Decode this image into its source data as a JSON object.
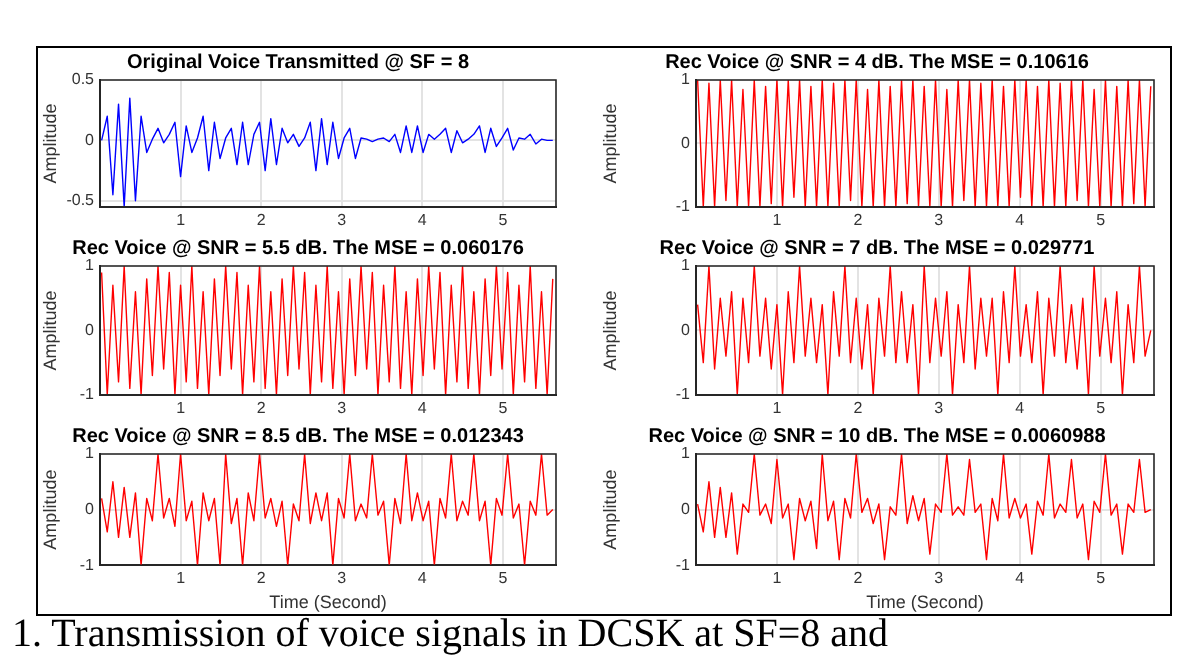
{
  "chart_data": [
    {
      "type": "line",
      "title": "Original Voice Transmitted @ SF = 8",
      "ylabel": "Amplitude",
      "color": "#0000ff",
      "grid": true,
      "xlim": [
        0,
        5.66
      ],
      "xticks": [
        1,
        2,
        3,
        4,
        5
      ],
      "ylim": [
        -0.55,
        0.5
      ],
      "yticks": [
        -0.5,
        0,
        0.5
      ],
      "x": [
        0.02,
        0.09,
        0.16,
        0.23,
        0.3,
        0.37,
        0.44,
        0.51,
        0.58,
        0.65,
        0.72,
        0.79,
        0.86,
        0.93,
        1.0,
        1.07,
        1.14,
        1.21,
        1.28,
        1.35,
        1.42,
        1.49,
        1.56,
        1.63,
        1.7,
        1.77,
        1.84,
        1.91,
        1.98,
        2.05,
        2.12,
        2.19,
        2.26,
        2.33,
        2.4,
        2.47,
        2.54,
        2.61,
        2.68,
        2.75,
        2.82,
        2.89,
        2.96,
        3.03,
        3.1,
        3.17,
        3.24,
        3.31,
        3.38,
        3.45,
        3.52,
        3.59,
        3.66,
        3.73,
        3.8,
        3.87,
        3.94,
        4.01,
        4.08,
        4.15,
        4.22,
        4.29,
        4.36,
        4.43,
        4.5,
        4.57,
        4.64,
        4.71,
        4.78,
        4.85,
        4.92,
        4.99,
        5.06,
        5.13,
        5.2,
        5.27,
        5.34,
        5.41,
        5.48,
        5.55,
        5.62
      ],
      "values": [
        0,
        0.2,
        -0.45,
        0.3,
        -0.55,
        0.35,
        -0.5,
        0.2,
        -0.1,
        0.01,
        0.1,
        -0.02,
        0.05,
        0.15,
        -0.3,
        0.12,
        -0.1,
        0.02,
        0.2,
        -0.25,
        0.15,
        -0.15,
        0.02,
        0.1,
        -0.2,
        0.15,
        -0.2,
        0.05,
        0.15,
        -0.25,
        0.18,
        -0.2,
        0.1,
        -0.02,
        0.05,
        -0.05,
        0.02,
        0.15,
        -0.25,
        0.18,
        -0.2,
        0.15,
        -0.15,
        0.02,
        0.1,
        -0.15,
        0.02,
        0.01,
        -0.01,
        0.01,
        0.02,
        -0.01,
        0.05,
        -0.1,
        0.12,
        -0.1,
        0.12,
        -0.1,
        0.05,
        0.01,
        0.05,
        0.1,
        -0.1,
        0.08,
        -0.02,
        0.01,
        0.05,
        0.12,
        -0.1,
        0.1,
        -0.05,
        0.02,
        0.1,
        -0.08,
        0.02,
        0.01,
        0.05,
        -0.03,
        0.01,
        0,
        0
      ]
    },
    {
      "type": "line",
      "title": "Rec Voice @ SNR = 4 dB. The MSE = 0.10616",
      "ylabel": "Amplitude",
      "color": "#ff0000",
      "grid": true,
      "xlim": [
        0,
        5.66
      ],
      "xticks": [
        1,
        2,
        3,
        4,
        5
      ],
      "ylim": [
        -1,
        1
      ],
      "yticks": [
        -1,
        0,
        1
      ],
      "x": [
        0.02,
        0.09,
        0.16,
        0.23,
        0.3,
        0.37,
        0.44,
        0.51,
        0.58,
        0.65,
        0.72,
        0.79,
        0.86,
        0.93,
        1.0,
        1.07,
        1.14,
        1.21,
        1.28,
        1.35,
        1.42,
        1.49,
        1.56,
        1.63,
        1.7,
        1.77,
        1.84,
        1.91,
        1.98,
        2.05,
        2.12,
        2.19,
        2.26,
        2.33,
        2.4,
        2.47,
        2.54,
        2.61,
        2.68,
        2.75,
        2.82,
        2.89,
        2.96,
        3.03,
        3.1,
        3.17,
        3.24,
        3.31,
        3.38,
        3.45,
        3.52,
        3.59,
        3.66,
        3.73,
        3.8,
        3.87,
        3.94,
        4.01,
        4.08,
        4.15,
        4.22,
        4.29,
        4.36,
        4.43,
        4.5,
        4.57,
        4.64,
        4.71,
        4.78,
        4.85,
        4.92,
        4.99,
        5.06,
        5.13,
        5.2,
        5.27,
        5.34,
        5.41,
        5.48,
        5.55,
        5.62
      ],
      "values": [
        1,
        -1,
        0.95,
        -1,
        1,
        -0.9,
        1,
        -1,
        0.85,
        -1,
        1,
        -1,
        0.9,
        -0.95,
        1,
        -1,
        1,
        -0.85,
        1,
        -1,
        0.9,
        -1,
        1,
        -1,
        0.95,
        -1,
        1,
        -0.9,
        1,
        -1,
        0.85,
        -1,
        1,
        -1,
        0.9,
        -1,
        1,
        -0.95,
        1,
        -1,
        0.9,
        -1,
        1,
        -1,
        0.85,
        -1,
        1,
        -0.9,
        1,
        -1,
        0.95,
        -1,
        1,
        -1,
        0.9,
        -1,
        1,
        -0.85,
        1,
        -1,
        0.9,
        -1,
        1,
        -1,
        0.95,
        -1,
        1,
        -0.9,
        1,
        -1,
        0.85,
        -1,
        1,
        -1,
        0.9,
        -1,
        1,
        -0.95,
        1,
        -1,
        0.9
      ]
    },
    {
      "type": "line",
      "title": "Rec Voice @ SNR = 5.5 dB. The MSE = 0.060176",
      "ylabel": "Amplitude",
      "color": "#ff0000",
      "grid": true,
      "xlim": [
        0,
        5.66
      ],
      "xticks": [
        1,
        2,
        3,
        4,
        5
      ],
      "ylim": [
        -1,
        1
      ],
      "yticks": [
        -1,
        0,
        1
      ],
      "x": [
        0.02,
        0.09,
        0.16,
        0.23,
        0.3,
        0.37,
        0.44,
        0.51,
        0.58,
        0.65,
        0.72,
        0.79,
        0.86,
        0.93,
        1.0,
        1.07,
        1.14,
        1.21,
        1.28,
        1.35,
        1.42,
        1.49,
        1.56,
        1.63,
        1.7,
        1.77,
        1.84,
        1.91,
        1.98,
        2.05,
        2.12,
        2.19,
        2.26,
        2.33,
        2.4,
        2.47,
        2.54,
        2.61,
        2.68,
        2.75,
        2.82,
        2.89,
        2.96,
        3.03,
        3.1,
        3.17,
        3.24,
        3.31,
        3.38,
        3.45,
        3.52,
        3.59,
        3.66,
        3.73,
        3.8,
        3.87,
        3.94,
        4.01,
        4.08,
        4.15,
        4.22,
        4.29,
        4.36,
        4.43,
        4.5,
        4.57,
        4.64,
        4.71,
        4.78,
        4.85,
        4.92,
        4.99,
        5.06,
        5.13,
        5.2,
        5.27,
        5.34,
        5.41,
        5.48,
        5.55,
        5.62
      ],
      "values": [
        0.9,
        -1,
        0.7,
        -0.8,
        1,
        -0.9,
        0.6,
        -1,
        0.8,
        -0.7,
        1,
        -0.6,
        0.9,
        -1,
        0.7,
        -0.8,
        1,
        -0.9,
        0.6,
        -1,
        0.8,
        -0.7,
        1,
        -0.6,
        0.9,
        -1,
        0.7,
        -0.8,
        1,
        -0.9,
        0.6,
        -1,
        0.8,
        -0.7,
        1,
        -0.6,
        0.9,
        -1,
        0.7,
        -0.8,
        1,
        -0.9,
        0.6,
        -1,
        0.8,
        -0.7,
        1,
        -0.6,
        0.9,
        -1,
        0.7,
        -0.8,
        1,
        -0.9,
        0.6,
        -1,
        0.8,
        -0.7,
        1,
        -0.6,
        0.9,
        -1,
        0.7,
        -0.8,
        1,
        -0.9,
        0.6,
        -1,
        0.8,
        -0.7,
        1,
        -0.6,
        0.9,
        -1,
        0.7,
        -0.8,
        1,
        -0.9,
        0.6,
        -1,
        0.8
      ]
    },
    {
      "type": "line",
      "title": "Rec Voice @ SNR = 7 dB. The MSE = 0.029771",
      "ylabel": "Amplitude",
      "color": "#ff0000",
      "grid": true,
      "xlim": [
        0,
        5.66
      ],
      "xticks": [
        1,
        2,
        3,
        4,
        5
      ],
      "ylim": [
        -1,
        1
      ],
      "yticks": [
        -1,
        0,
        1
      ],
      "x": [
        0.02,
        0.09,
        0.16,
        0.23,
        0.3,
        0.37,
        0.44,
        0.51,
        0.58,
        0.65,
        0.72,
        0.79,
        0.86,
        0.93,
        1.0,
        1.07,
        1.14,
        1.21,
        1.28,
        1.35,
        1.42,
        1.49,
        1.56,
        1.63,
        1.7,
        1.77,
        1.84,
        1.91,
        1.98,
        2.05,
        2.12,
        2.19,
        2.26,
        2.33,
        2.4,
        2.47,
        2.54,
        2.61,
        2.68,
        2.75,
        2.82,
        2.89,
        2.96,
        3.03,
        3.1,
        3.17,
        3.24,
        3.31,
        3.38,
        3.45,
        3.52,
        3.59,
        3.66,
        3.73,
        3.8,
        3.87,
        3.94,
        4.01,
        4.08,
        4.15,
        4.22,
        4.29,
        4.36,
        4.43,
        4.5,
        4.57,
        4.64,
        4.71,
        4.78,
        4.85,
        4.92,
        4.99,
        5.06,
        5.13,
        5.2,
        5.27,
        5.34,
        5.41,
        5.48,
        5.55,
        5.62
      ],
      "values": [
        0.4,
        -0.5,
        1,
        -0.6,
        0.5,
        -0.4,
        0.6,
        -1,
        0.5,
        -0.5,
        1,
        -0.4,
        0.5,
        -0.6,
        0.4,
        -1,
        0.6,
        -0.5,
        1,
        -0.4,
        0.5,
        -0.5,
        0.4,
        -1,
        0.6,
        -0.4,
        1,
        -0.5,
        0.5,
        -0.6,
        0.4,
        -1,
        0.5,
        -0.4,
        1,
        -0.5,
        0.6,
        -0.5,
        0.4,
        -1,
        1,
        -0.5,
        0.5,
        -0.4,
        0.6,
        -1,
        0.4,
        -0.5,
        1,
        -0.6,
        0.5,
        -0.4,
        0.5,
        -1,
        0.6,
        -0.5,
        1,
        -0.4,
        0.4,
        -0.5,
        0.6,
        -1,
        0.5,
        -0.4,
        1,
        -0.5,
        0.4,
        -0.6,
        0.5,
        -1,
        1,
        -0.4,
        0.5,
        -0.5,
        0.6,
        -1,
        0.4,
        -0.5,
        1,
        -0.4,
        0
      ]
    },
    {
      "type": "line",
      "title": "Rec Voice @ SNR = 8.5 dB. The MSE = 0.012343",
      "xlabel": "Time (Second)",
      "ylabel": "Amplitude",
      "color": "#ff0000",
      "grid": true,
      "xlim": [
        0,
        5.66
      ],
      "xticks": [
        1,
        2,
        3,
        4,
        5
      ],
      "ylim": [
        -1,
        1
      ],
      "yticks": [
        -1,
        0,
        1
      ],
      "x": [
        0.02,
        0.09,
        0.16,
        0.23,
        0.3,
        0.37,
        0.44,
        0.51,
        0.58,
        0.65,
        0.72,
        0.79,
        0.86,
        0.93,
        1.0,
        1.07,
        1.14,
        1.21,
        1.28,
        1.35,
        1.42,
        1.49,
        1.56,
        1.63,
        1.7,
        1.77,
        1.84,
        1.91,
        1.98,
        2.05,
        2.12,
        2.19,
        2.26,
        2.33,
        2.4,
        2.47,
        2.54,
        2.61,
        2.68,
        2.75,
        2.82,
        2.89,
        2.96,
        3.03,
        3.1,
        3.17,
        3.24,
        3.31,
        3.38,
        3.45,
        3.52,
        3.59,
        3.66,
        3.73,
        3.8,
        3.87,
        3.94,
        4.01,
        4.08,
        4.15,
        4.22,
        4.29,
        4.36,
        4.43,
        4.5,
        4.57,
        4.64,
        4.71,
        4.78,
        4.85,
        4.92,
        4.99,
        5.06,
        5.13,
        5.2,
        5.27,
        5.34,
        5.41,
        5.48,
        5.55,
        5.62
      ],
      "values": [
        0.2,
        -0.4,
        0.5,
        -0.5,
        0.4,
        -0.5,
        0.3,
        -1,
        0.2,
        -0.2,
        1,
        -0.15,
        0.2,
        -0.3,
        1,
        -0.2,
        0.15,
        -1,
        0.3,
        -0.2,
        0.2,
        -1,
        1,
        -0.25,
        0.2,
        -1,
        0.3,
        -0.2,
        1,
        -0.15,
        0.2,
        -0.3,
        0.15,
        -1,
        0.1,
        -0.2,
        1,
        -0.25,
        0.3,
        -0.2,
        0.3,
        -1,
        0.2,
        -0.15,
        1,
        -0.2,
        0.1,
        -0.15,
        1,
        -0.1,
        0.15,
        -1,
        0.2,
        -0.25,
        1,
        -0.2,
        0.3,
        -0.2,
        0.15,
        -1,
        0.2,
        -0.15,
        1,
        -0.2,
        0.15,
        -0.1,
        1,
        -0.2,
        0.15,
        -1,
        0.2,
        -0.1,
        1,
        -0.15,
        0.1,
        -1,
        0.15,
        -0.1,
        1,
        -0.1,
        0
      ]
    },
    {
      "type": "line",
      "title": "Rec Voice @ SNR = 10 dB. The MSE = 0.0060988",
      "xlabel": "Time (Second)",
      "ylabel": "Amplitude",
      "color": "#ff0000",
      "grid": true,
      "xlim": [
        0,
        5.66
      ],
      "xticks": [
        1,
        2,
        3,
        4,
        5
      ],
      "ylim": [
        -1,
        1
      ],
      "yticks": [
        -1,
        0,
        1
      ],
      "annotations": [
        "1. Transmission of voice signals in DCSK at SF=8 and"
      ],
      "x": [
        0.02,
        0.09,
        0.16,
        0.23,
        0.3,
        0.37,
        0.44,
        0.51,
        0.58,
        0.65,
        0.72,
        0.79,
        0.86,
        0.93,
        1.0,
        1.07,
        1.14,
        1.21,
        1.28,
        1.35,
        1.42,
        1.49,
        1.56,
        1.63,
        1.7,
        1.77,
        1.84,
        1.91,
        1.98,
        2.05,
        2.12,
        2.19,
        2.26,
        2.33,
        2.4,
        2.47,
        2.54,
        2.61,
        2.68,
        2.75,
        2.82,
        2.89,
        2.96,
        3.03,
        3.1,
        3.17,
        3.24,
        3.31,
        3.38,
        3.45,
        3.52,
        3.59,
        3.66,
        3.73,
        3.8,
        3.87,
        3.94,
        4.01,
        4.08,
        4.15,
        4.22,
        4.29,
        4.36,
        4.43,
        4.5,
        4.57,
        4.64,
        4.71,
        4.78,
        4.85,
        4.92,
        4.99,
        5.06,
        5.13,
        5.2,
        5.27,
        5.34,
        5.41,
        5.48,
        5.55,
        5.62
      ],
      "values": [
        0.1,
        -0.4,
        0.5,
        -0.5,
        0.4,
        -0.5,
        0.3,
        -0.8,
        0.1,
        -0.05,
        1,
        -0.1,
        0.1,
        -0.25,
        0.9,
        -0.15,
        0.1,
        -0.9,
        0.2,
        -0.2,
        0.15,
        -0.7,
        1,
        -0.2,
        0.15,
        -0.9,
        0.2,
        -0.15,
        1,
        -0.05,
        0.2,
        -0.25,
        0.1,
        -0.9,
        0.05,
        -0.1,
        1,
        -0.25,
        0.25,
        -0.2,
        0.2,
        -0.8,
        0.1,
        -0.05,
        1,
        -0.1,
        0.05,
        -0.1,
        0.9,
        -0.05,
        0.1,
        -0.9,
        0.2,
        -0.2,
        1,
        -0.15,
        0.2,
        -0.15,
        0.1,
        -0.8,
        0.15,
        -0.1,
        1,
        -0.15,
        0.1,
        -0.05,
        0.9,
        -0.15,
        0.1,
        -0.9,
        0.15,
        -0.05,
        1,
        -0.1,
        0.1,
        -0.8,
        0.1,
        -0.05,
        0.9,
        -0.05,
        0
      ]
    }
  ]
}
